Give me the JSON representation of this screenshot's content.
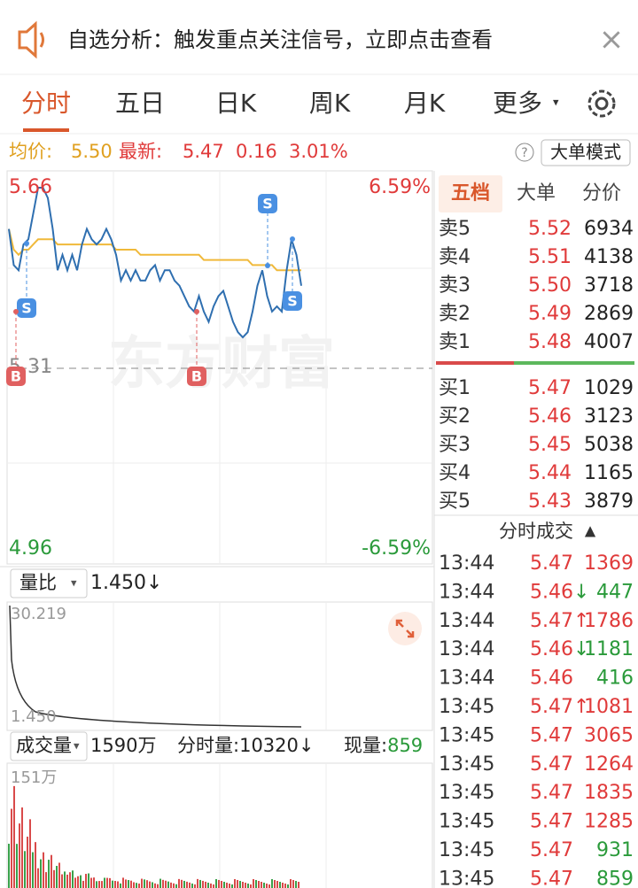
{
  "banner": {
    "text": "自选分析：触发重点关注信号，立即点击查看",
    "close": "×"
  },
  "tabs": {
    "items": [
      "分时",
      "五日",
      "日K",
      "周K",
      "月K",
      "更多"
    ],
    "active": 0
  },
  "info": {
    "avg_label": "均价:",
    "avg": "5.50",
    "latest_label": "最新:",
    "latest": "5.47",
    "change": "0.16",
    "change_pct": "3.01%",
    "help": "?",
    "mode_button": "大单模式"
  },
  "chart": {
    "type": "line",
    "pct_high": "6.59%",
    "pct_low": "-6.59%",
    "watermark": "东方财富",
    "ylim": [
      4.96,
      5.66
    ],
    "prev_close": 5.31,
    "price": {
      "color": "#2f6fb0",
      "values": [
        5.58,
        5.51,
        5.5,
        5.55,
        5.56,
        5.61,
        5.66,
        5.66,
        5.64,
        5.58,
        5.5,
        5.53,
        5.5,
        5.53,
        5.5,
        5.55,
        5.58,
        5.56,
        5.55,
        5.56,
        5.58,
        5.56,
        5.53,
        5.48,
        5.5,
        5.48,
        5.5,
        5.48,
        5.48,
        5.5,
        5.51,
        5.48,
        5.5,
        5.5,
        5.48,
        5.47,
        5.45,
        5.43,
        5.42,
        5.45,
        5.42,
        5.4,
        5.43,
        5.45,
        5.46,
        5.43,
        5.4,
        5.38,
        5.37,
        5.38,
        5.42,
        5.47,
        5.5,
        5.45,
        5.42,
        5.43,
        5.42,
        5.5,
        5.56,
        5.53,
        5.47
      ]
    },
    "average": {
      "color": "#f0b93a",
      "values": [
        5.58,
        5.54,
        5.53,
        5.54,
        5.54,
        5.55,
        5.56,
        5.56,
        5.56,
        5.56,
        5.55,
        5.55,
        5.55,
        5.55,
        5.55,
        5.55,
        5.55,
        5.55,
        5.55,
        5.55,
        5.55,
        5.55,
        5.54,
        5.54,
        5.54,
        5.54,
        5.54,
        5.53,
        5.53,
        5.53,
        5.53,
        5.53,
        5.53,
        5.53,
        5.53,
        5.53,
        5.53,
        5.53,
        5.53,
        5.53,
        5.52,
        5.52,
        5.52,
        5.52,
        5.52,
        5.52,
        5.52,
        5.52,
        5.52,
        5.52,
        5.51,
        5.51,
        5.51,
        5.51,
        5.51,
        5.5,
        5.5,
        5.5,
        5.5,
        5.5,
        5.5
      ]
    },
    "signals": [
      "S",
      "B",
      "B",
      "S",
      "S"
    ]
  },
  "ratio": {
    "label": "量比",
    "value": "1.450",
    "arrow": "↓",
    "max": "30.219",
    "min": "1.450"
  },
  "volume": {
    "label": "成交量",
    "total": "1590万",
    "period_label": "分时量:",
    "period": "10320",
    "arrow": "↓",
    "now_label": "现量:",
    "now": "859",
    "max": "151万"
  },
  "book": {
    "tabs": [
      "五档",
      "大单",
      "分价"
    ],
    "asks": [
      {
        "label": "卖5",
        "price": "5.52",
        "volume": "6934"
      },
      {
        "label": "卖4",
        "price": "5.51",
        "volume": "4138"
      },
      {
        "label": "卖3",
        "price": "5.50",
        "volume": "3718"
      },
      {
        "label": "卖2",
        "price": "5.49",
        "volume": "2869"
      },
      {
        "label": "卖1",
        "price": "5.48",
        "volume": "4007"
      }
    ],
    "bids": [
      {
        "label": "买1",
        "price": "5.47",
        "volume": "1029"
      },
      {
        "label": "买2",
        "price": "5.46",
        "volume": "3123"
      },
      {
        "label": "买3",
        "price": "5.45",
        "volume": "5038"
      },
      {
        "label": "买4",
        "price": "5.44",
        "volume": "1165"
      },
      {
        "label": "买5",
        "price": "5.43",
        "volume": "3879"
      }
    ]
  },
  "trades": {
    "title": "分时成交",
    "toggle": "▲",
    "rows": [
      {
        "time": "13:44",
        "price": "5.47",
        "volume": "1369",
        "side": "buy"
      },
      {
        "time": "13:44",
        "price": "5.46",
        "arrow": "↓",
        "volume": "447",
        "side": "sell"
      },
      {
        "time": "13:44",
        "price": "5.47",
        "arrow": "↑",
        "volume": "1786",
        "side": "buy"
      },
      {
        "time": "13:44",
        "price": "5.46",
        "arrow": "↓",
        "volume": "1181",
        "side": "sell"
      },
      {
        "time": "13:44",
        "price": "5.46",
        "volume": "416",
        "side": "sell"
      },
      {
        "time": "13:45",
        "price": "5.47",
        "arrow": "↑",
        "volume": "1081",
        "side": "buy"
      },
      {
        "time": "13:45",
        "price": "5.47",
        "volume": "3065",
        "side": "buy"
      },
      {
        "time": "13:45",
        "price": "5.47",
        "volume": "1264",
        "side": "buy"
      },
      {
        "time": "13:45",
        "price": "5.47",
        "volume": "1835",
        "side": "buy"
      },
      {
        "time": "13:45",
        "price": "5.47",
        "volume": "1285",
        "side": "buy"
      },
      {
        "time": "13:45",
        "price": "5.47",
        "volume": "931",
        "side": "sell"
      },
      {
        "time": "13:45",
        "price": "5.47",
        "volume": "859",
        "side": "sell"
      }
    ]
  }
}
